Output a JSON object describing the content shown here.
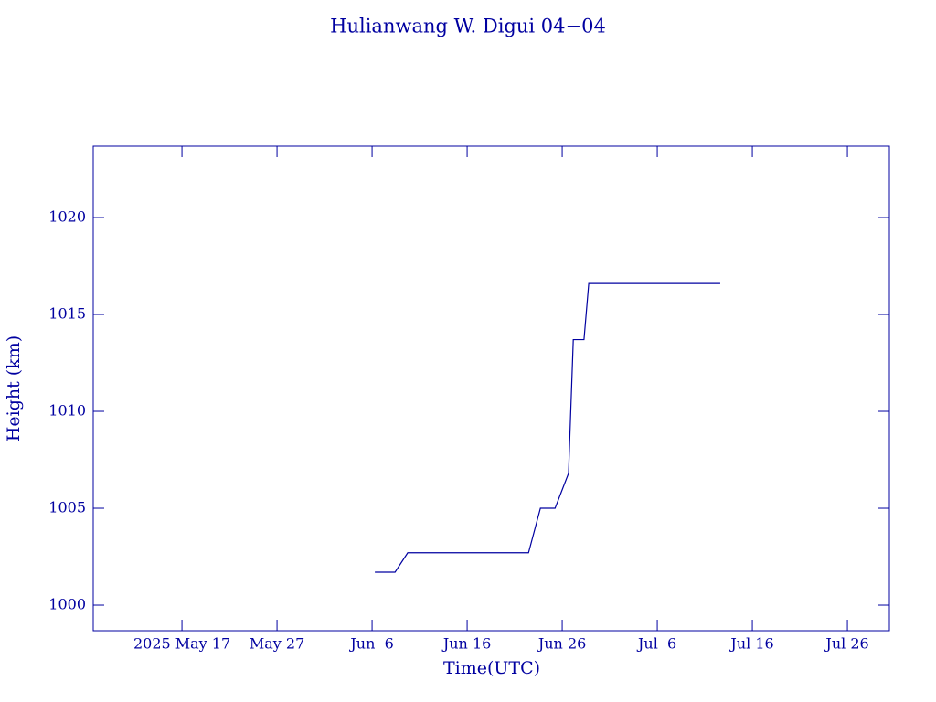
{
  "chart_data": {
    "type": "line",
    "title": "Hulianwang W. Digui 04−04",
    "x_label": "Time(UTC)",
    "y_label": "Height (km)",
    "color": "#0000a0",
    "x": [
      "2025-06-06T07:00",
      "2025-06-08T10:00",
      "2025-06-09T18:00",
      "2025-06-22T11:00",
      "2025-06-23T17:00",
      "2025-06-25T06:00",
      "2025-06-26T16:00",
      "2025-06-27T04:00",
      "2025-06-28T07:00",
      "2025-06-28T19:00",
      "2025-07-12T15:00"
    ],
    "values": [
      1001.7,
      1001.7,
      1002.7,
      1002.7,
      1005.0,
      1005.0,
      1006.8,
      1013.7,
      1013.7,
      1016.6,
      1016.6
    ],
    "xlim": [
      "2025-05-07T16:00",
      "2025-07-30T10:00"
    ],
    "xticks": [
      {
        "value": "2025-05-17",
        "label": "2025 May 17"
      },
      {
        "value": "2025-05-27",
        "label": "May 27"
      },
      {
        "value": "2025-06-06",
        "label": "Jun  6"
      },
      {
        "value": "2025-06-16",
        "label": "Jun 16"
      },
      {
        "value": "2025-06-26",
        "label": "Jun 26"
      },
      {
        "value": "2025-07-06",
        "label": "Jul  6"
      },
      {
        "value": "2025-07-16",
        "label": "Jul 16"
      },
      {
        "value": "2025-07-26",
        "label": "Jul 26"
      }
    ],
    "ylim": [
      998.68,
      1023.68
    ],
    "yticks": [
      1000,
      1005,
      1010,
      1015,
      1020
    ]
  }
}
